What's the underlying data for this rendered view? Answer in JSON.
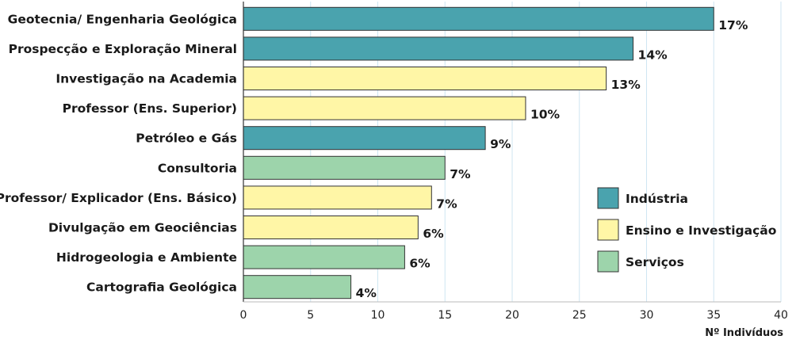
{
  "chart_data": {
    "type": "bar",
    "orientation": "horizontal",
    "xlabel": "Nº Indivíduos",
    "xlim": [
      0,
      40
    ],
    "xticks": [
      0,
      5,
      10,
      15,
      20,
      25,
      30,
      35,
      40
    ],
    "grid": "vertical",
    "legend_position": "right",
    "groups": [
      {
        "name": "Indústria",
        "color": "#4aa3ae"
      },
      {
        "name": "Ensino e Investigação",
        "color": "#fff6a6"
      },
      {
        "name": "Serviços",
        "color": "#9dd4ab"
      }
    ],
    "bars": [
      {
        "category": "Geotecnia/ Engenharia Geológica",
        "value": 35,
        "label": "17%",
        "group": "Indústria"
      },
      {
        "category": "Prospecção e Exploração Mineral",
        "value": 29,
        "label": "14%",
        "group": "Indústria"
      },
      {
        "category": "Investigação na Academia",
        "value": 27,
        "label": "13%",
        "group": "Ensino e Investigação"
      },
      {
        "category": "Professor (Ens. Superior)",
        "value": 21,
        "label": "10%",
        "group": "Ensino e Investigação"
      },
      {
        "category": "Petróleo e Gás",
        "value": 18,
        "label": "9%",
        "group": "Indústria"
      },
      {
        "category": "Consultoria",
        "value": 15,
        "label": "7%",
        "group": "Serviços"
      },
      {
        "category": "Professor/ Explicador (Ens. Básico)",
        "value": 14,
        "label": "7%",
        "group": "Ensino e Investigação"
      },
      {
        "category": "Divulgação em Geociências",
        "value": 13,
        "label": "6%",
        "group": "Ensino e Investigação"
      },
      {
        "category": "Hidrogeologia e Ambiente",
        "value": 12,
        "label": "6%",
        "group": "Serviços"
      },
      {
        "category": "Cartografia Geológica",
        "value": 8,
        "label": "4%",
        "group": "Serviços"
      }
    ]
  }
}
